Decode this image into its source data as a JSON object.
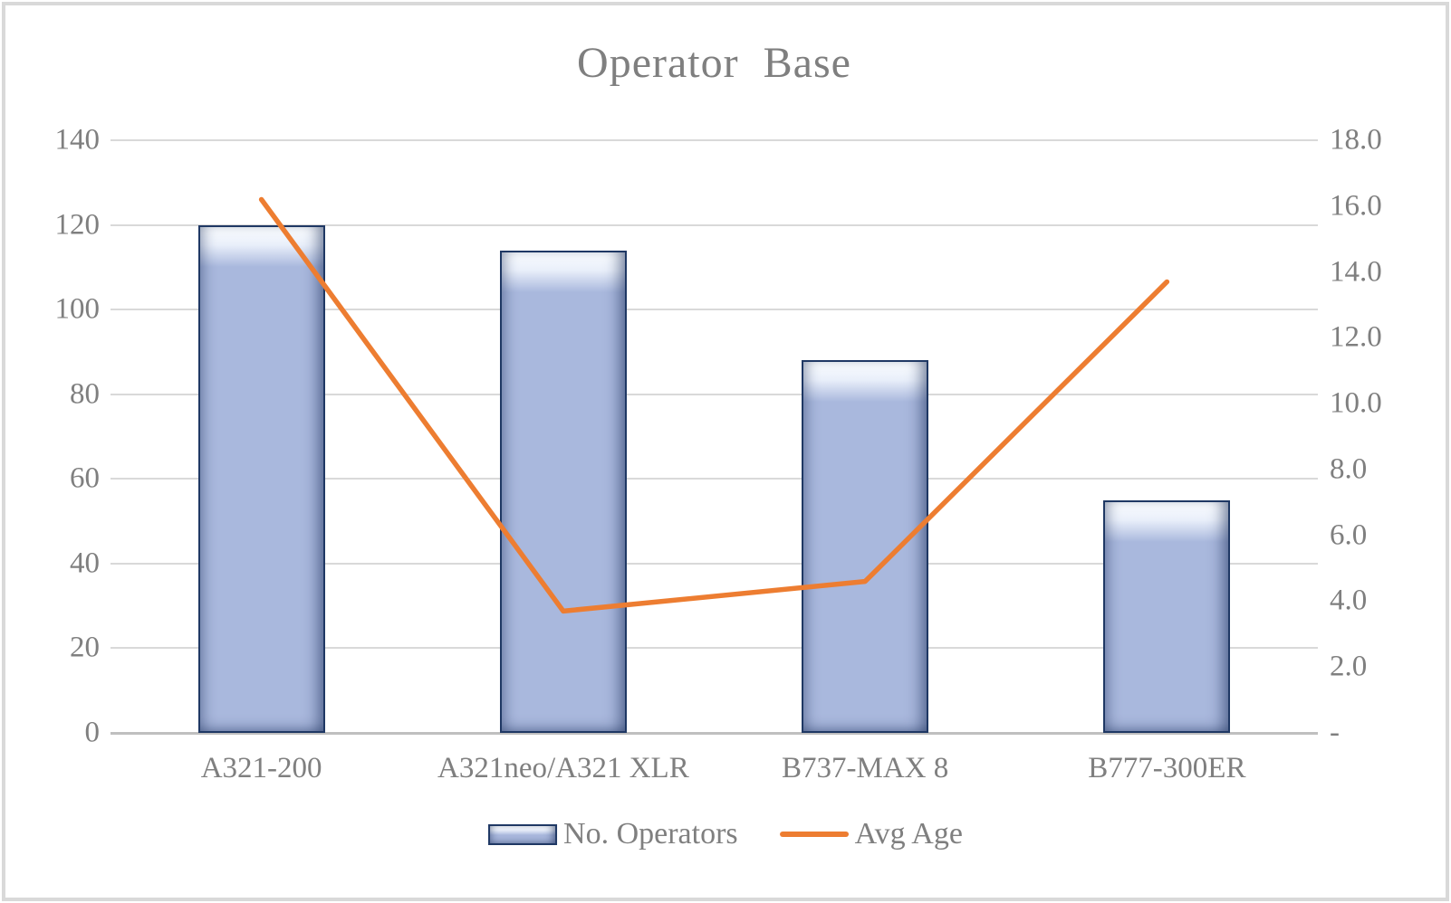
{
  "chart_data": {
    "type": "combo",
    "title": "Operator Base",
    "categories": [
      "A321-200",
      "A321neo/A321 XLR",
      "B737-MAX 8",
      "B777-300ER"
    ],
    "series": [
      {
        "name": "No. Operators",
        "type": "bar",
        "axis": "left",
        "values": [
          120,
          114,
          88,
          55
        ]
      },
      {
        "name": "Avg Age",
        "type": "line",
        "axis": "right",
        "values": [
          16.2,
          3.7,
          4.6,
          13.7
        ]
      }
    ],
    "left_axis": {
      "min": 0,
      "max": 140,
      "step": 20,
      "tick_labels": [
        "0",
        "20",
        "40",
        "60",
        "80",
        "100",
        "120",
        "140"
      ]
    },
    "right_axis": {
      "min": 0,
      "max": 18,
      "step": 2,
      "tick_labels": [
        "-",
        "2.0",
        "4.0",
        "6.0",
        "8.0",
        "10.0",
        "12.0",
        "14.0",
        "16.0",
        "18.0"
      ]
    },
    "grid": true,
    "legend": {
      "position": "bottom",
      "entries": [
        "No. Operators",
        "Avg Age"
      ]
    }
  },
  "colors": {
    "bar_fill": "#a9b8dd",
    "bar_border": "#1f3864",
    "line": "#ed7d31",
    "text": "#7f7f7f",
    "gridline": "#d9d9d9",
    "axis_line": "#bfbfbf",
    "frame_border": "#d9d9d9"
  }
}
